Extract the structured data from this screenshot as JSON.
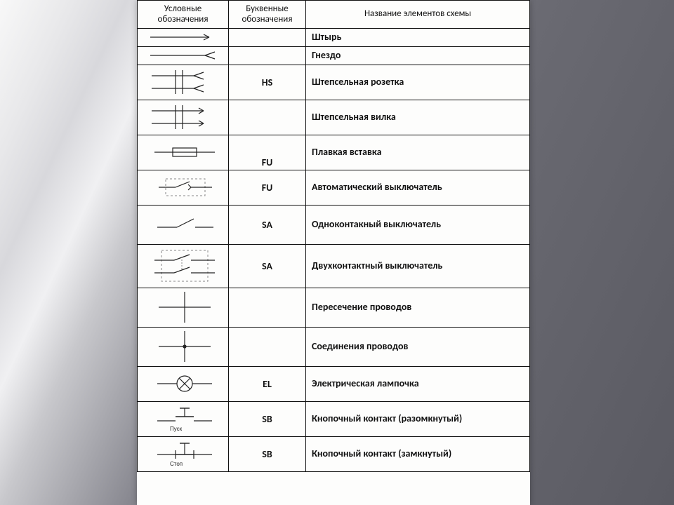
{
  "headers": {
    "col1": "Условные обозначения",
    "col2": "Буквенные обозначения",
    "col3": "Название элементов схемы"
  },
  "rows": [
    {
      "code": "",
      "name": "Штырь",
      "icon": "pin",
      "h": "sm"
    },
    {
      "code": "",
      "name": "Гнездо",
      "icon": "socket",
      "h": "sm"
    },
    {
      "code": "HS",
      "name": "Штепсельная розетка",
      "icon": "receptacle",
      "h": "md"
    },
    {
      "code": "",
      "name": "Штепсельная вилка",
      "icon": "plug",
      "h": "md"
    },
    {
      "code": "FU",
      "name": "Плавкая вставка",
      "icon": "fuse",
      "h": "md",
      "codeBottom": true
    },
    {
      "code": "FU",
      "name": "Автоматический выключатель",
      "icon": "breaker",
      "h": "md"
    },
    {
      "code": "SA",
      "name": "Одноконтакный выключатель",
      "icon": "switch1",
      "h": "lg"
    },
    {
      "code": "SA",
      "name": "Двухконтактный выключатель",
      "icon": "switch2",
      "h": "xl"
    },
    {
      "code": "",
      "name": "Пересечение проводов",
      "icon": "cross",
      "h": "lg"
    },
    {
      "code": "",
      "name": "Соединения проводов",
      "icon": "join",
      "h": "lg"
    },
    {
      "code": "EL",
      "name": "Электрическая лампочка",
      "icon": "lamp",
      "h": "md"
    },
    {
      "code": "SB",
      "name": "Кнопочный контакт (разомкнутый)",
      "icon": "pb_no",
      "h": "md"
    },
    {
      "code": "SB",
      "name": "Кнопочный контакт (замкнутый)",
      "icon": "pb_nc",
      "h": "md"
    }
  ],
  "captions": {
    "pusk": "Пуск",
    "stop": "Стоп"
  },
  "style": {
    "stroke": "#222",
    "dash": "#888",
    "text_color": "#111",
    "font_family": "Calibri, Arial, sans-serif",
    "header_fontsize": 13,
    "cell_fontsize": 14
  }
}
